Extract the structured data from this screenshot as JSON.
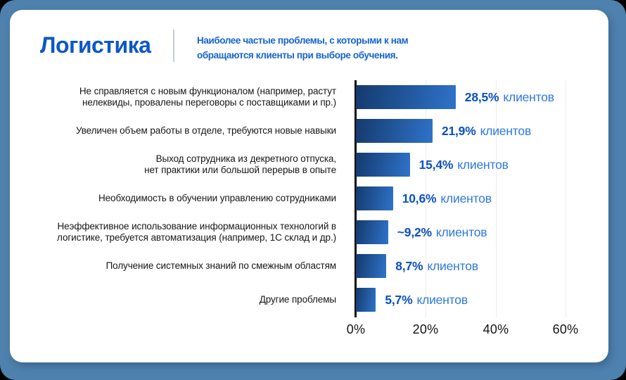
{
  "header": {
    "title": "Логистика",
    "subtitle": "Наиболее частые проблемы, с которыми к нам\nобращаются клиенты при выборе обучения."
  },
  "colors": {
    "background": "#4e81ad",
    "card": "#ffffff",
    "title_blue": "#0d57c8",
    "subtitle_blue": "#1464d2",
    "value_number_blue": "#0b51c4",
    "value_suffix_blue": "#2e78e2",
    "bar_gradient_start": "#143a6d",
    "bar_gradient_end": "#2f73ca",
    "label_text": "#161616",
    "gridline": "#ececec",
    "axis_line": "#0a0a0a"
  },
  "chart_data": {
    "type": "bar",
    "orientation": "horizontal",
    "title": "Логистика",
    "xlabel": "",
    "ylabel": "",
    "xlim": [
      0,
      60
    ],
    "xticks": [
      "0%",
      "20%",
      "40%",
      "60%"
    ],
    "grid": "vertical",
    "value_suffix": "клиентов",
    "rows": [
      {
        "label": "Не справляется с новым функционалом (например, растут\nнелеквиды, провалены переговоры с поставщиками и пр.)",
        "value": 28.5,
        "value_label": "28,5%"
      },
      {
        "label": "Увеличен объем работы в отделе, требуются новые навыки",
        "value": 21.9,
        "value_label": "21,9%"
      },
      {
        "label": "Выход сотрудника из декретного отпуска,\nнет практики или большой перерыв в опыте",
        "value": 15.4,
        "value_label": "15,4%"
      },
      {
        "label": "Необходимость в обучении управлению сотрудниками",
        "value": 10.6,
        "value_label": "10,6%"
      },
      {
        "label": "Неэффективное использование информационных технологий в\nлогистике, требуется автоматизация (например, 1С склад и др.)",
        "value": 9.2,
        "value_label": "~9,2%"
      },
      {
        "label": "Получение системных знаний по смежным областям",
        "value": 8.7,
        "value_label": "8,7%"
      },
      {
        "label": "Другие проблемы",
        "value": 5.7,
        "value_label": "5,7%"
      }
    ]
  }
}
